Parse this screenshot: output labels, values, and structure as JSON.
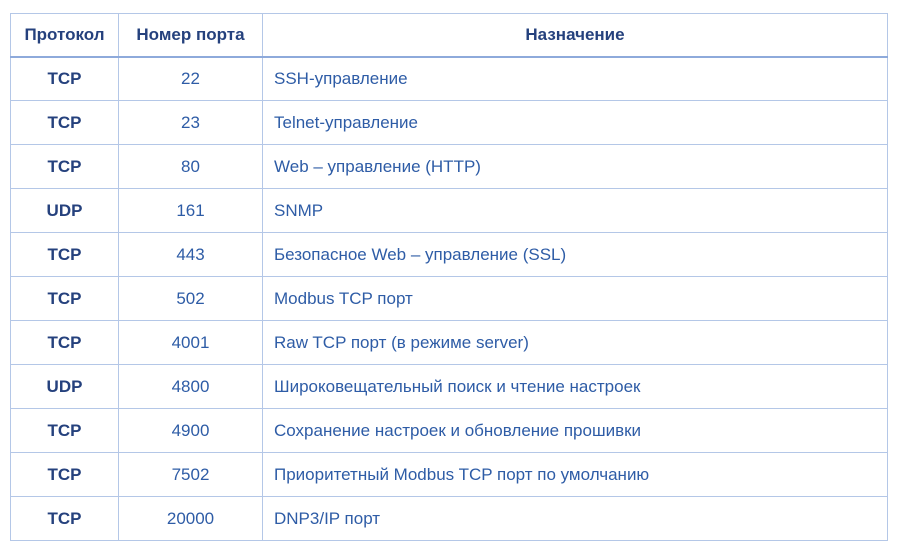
{
  "table": {
    "title": "Network ports table",
    "colors": {
      "border": "#b4c7e7",
      "header_rule": "#8eaadb",
      "header_text": "#25417d",
      "body_text": "#2e5ca6",
      "background": "#ffffff"
    },
    "headers": [
      "Протокол",
      "Номер порта",
      "Назначение"
    ],
    "rows": [
      {
        "protocol": "TCP",
        "port": "22",
        "purpose": "SSH-управление"
      },
      {
        "protocol": "TCP",
        "port": "23",
        "purpose": "Telnet-управление"
      },
      {
        "protocol": "TCP",
        "port": "80",
        "purpose": "Web – управление (HTTP)"
      },
      {
        "protocol": "UDP",
        "port": "161",
        "purpose": "SNMP"
      },
      {
        "protocol": "TCP",
        "port": "443",
        "purpose": "Безопасное Web – управление (SSL)"
      },
      {
        "protocol": "TCP",
        "port": "502",
        "purpose": "Modbus TCP порт"
      },
      {
        "protocol": "TCP",
        "port": "4001",
        "purpose": "Raw TCP порт (в режиме server)"
      },
      {
        "protocol": "UDP",
        "port": "4800",
        "purpose": "Широковещательный поиск и чтение настроек"
      },
      {
        "protocol": "TCP",
        "port": "4900",
        "purpose": "Сохранение настроек и обновление прошивки"
      },
      {
        "protocol": "TCP",
        "port": "7502",
        "purpose": "Приоритетный Modbus TCP порт по умолчанию"
      },
      {
        "protocol": "TCP",
        "port": "20000",
        "purpose": "DNP3/IP порт"
      }
    ]
  }
}
